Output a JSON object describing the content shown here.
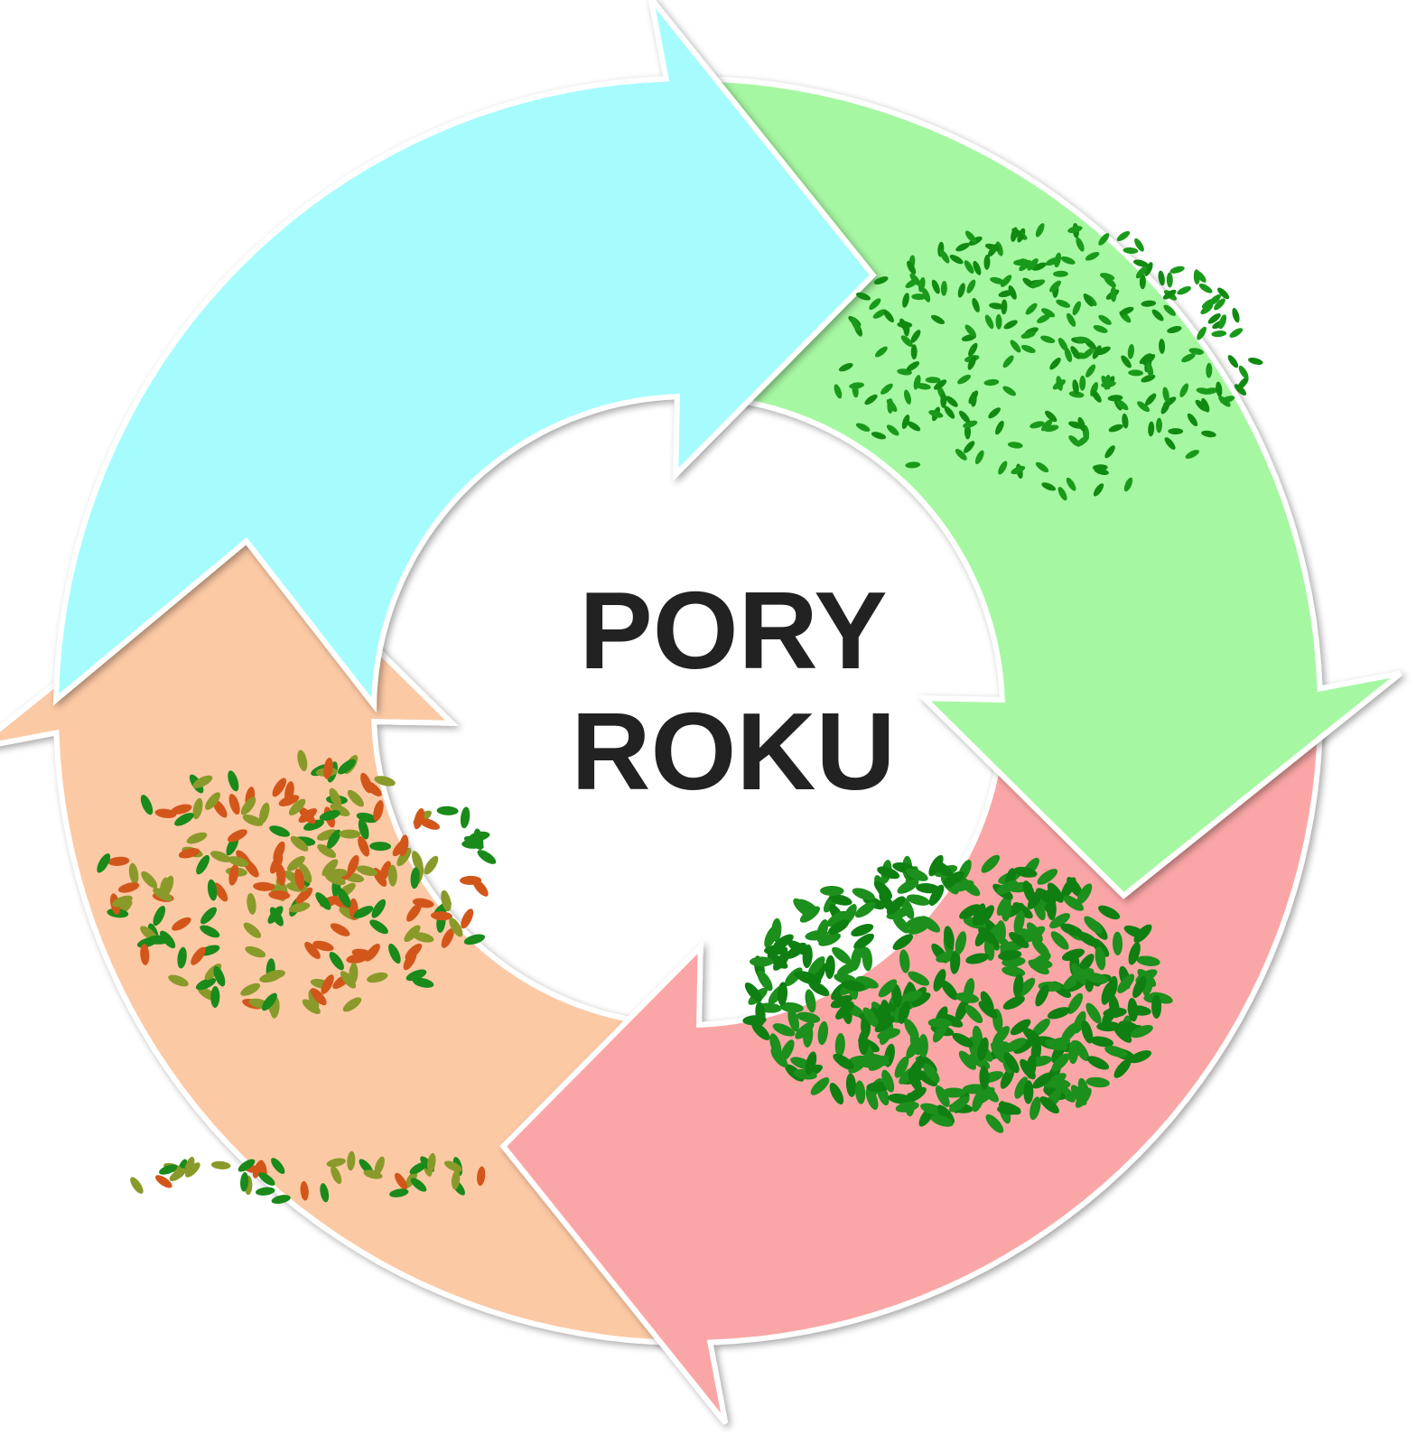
{
  "title": {
    "lines": [
      "PORY",
      "ROKU"
    ]
  }
}
